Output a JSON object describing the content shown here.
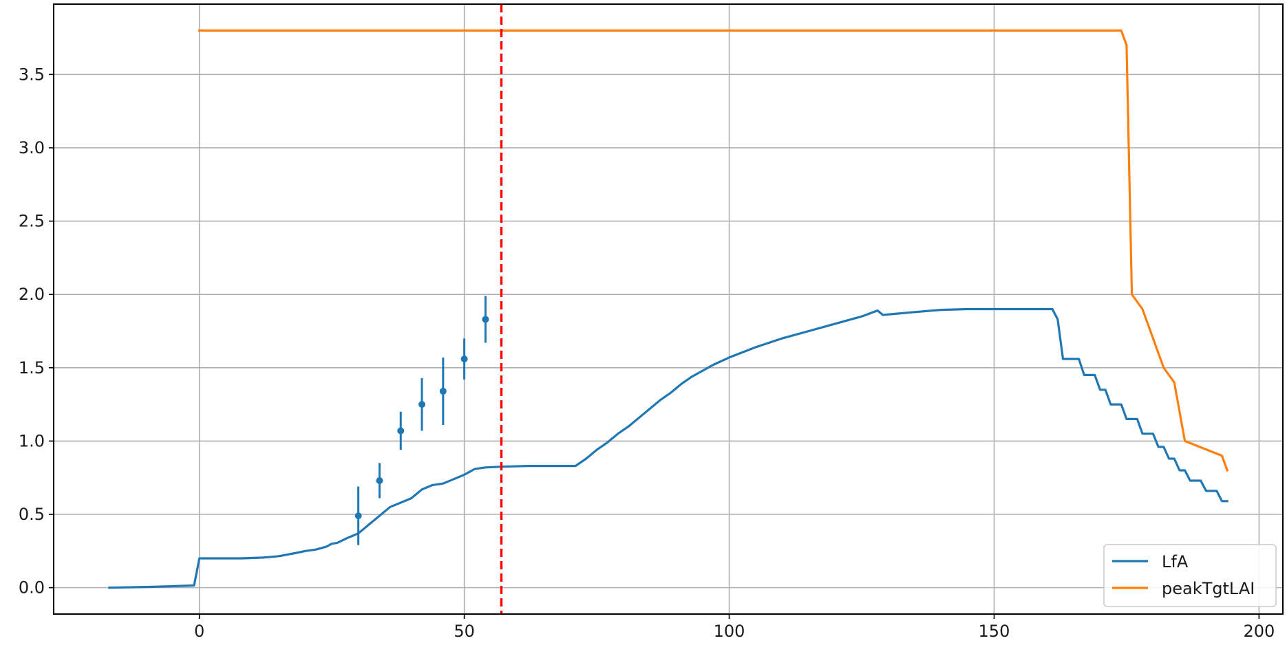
{
  "chart_data": {
    "type": "line",
    "title": "",
    "xlabel": "",
    "ylabel": "",
    "xlim": [
      -27.5,
      204.5
    ],
    "ylim": [
      -0.18,
      3.98
    ],
    "x_ticks": [
      0,
      50,
      100,
      150,
      200
    ],
    "x_tick_labels": [
      "0",
      "50",
      "100",
      "150",
      "200"
    ],
    "y_ticks": [
      0.0,
      0.5,
      1.0,
      1.5,
      2.0,
      2.5,
      3.0,
      3.5
    ],
    "y_tick_labels": [
      "0.0",
      "0.5",
      "1.0",
      "1.5",
      "2.0",
      "2.5",
      "3.0",
      "3.5"
    ],
    "grid": true,
    "legend_position": "lower-right",
    "series": [
      {
        "name": "LfA",
        "color": "#1f77b4",
        "points": [
          [
            -17,
            0.0
          ],
          [
            -10,
            0.005
          ],
          [
            -5,
            0.01
          ],
          [
            -1,
            0.015
          ],
          [
            0,
            0.2
          ],
          [
            4,
            0.2
          ],
          [
            8,
            0.2
          ],
          [
            12,
            0.205
          ],
          [
            15,
            0.215
          ],
          [
            18,
            0.235
          ],
          [
            20,
            0.25
          ],
          [
            22,
            0.26
          ],
          [
            24,
            0.28
          ],
          [
            25,
            0.3
          ],
          [
            26,
            0.305
          ],
          [
            28,
            0.34
          ],
          [
            30,
            0.37
          ],
          [
            32,
            0.43
          ],
          [
            34,
            0.49
          ],
          [
            36,
            0.55
          ],
          [
            38,
            0.58
          ],
          [
            40,
            0.61
          ],
          [
            42,
            0.67
          ],
          [
            44,
            0.7
          ],
          [
            46,
            0.71
          ],
          [
            48,
            0.74
          ],
          [
            50,
            0.77
          ],
          [
            51,
            0.79
          ],
          [
            52,
            0.81
          ],
          [
            54,
            0.82
          ],
          [
            57,
            0.825
          ],
          [
            62,
            0.83
          ],
          [
            66,
            0.83
          ],
          [
            71,
            0.83
          ],
          [
            73,
            0.88
          ],
          [
            75,
            0.94
          ],
          [
            77,
            0.99
          ],
          [
            79,
            1.05
          ],
          [
            81,
            1.1
          ],
          [
            83,
            1.16
          ],
          [
            85,
            1.22
          ],
          [
            87,
            1.28
          ],
          [
            89,
            1.33
          ],
          [
            91,
            1.39
          ],
          [
            93,
            1.44
          ],
          [
            95,
            1.48
          ],
          [
            97,
            1.52
          ],
          [
            100,
            1.57
          ],
          [
            105,
            1.64
          ],
          [
            110,
            1.7
          ],
          [
            115,
            1.75
          ],
          [
            120,
            1.8
          ],
          [
            125,
            1.85
          ],
          [
            128,
            1.89
          ],
          [
            129,
            1.86
          ],
          [
            135,
            1.88
          ],
          [
            140,
            1.895
          ],
          [
            145,
            1.9
          ],
          [
            150,
            1.9
          ],
          [
            155,
            1.9
          ],
          [
            161,
            1.9
          ],
          [
            162,
            1.83
          ],
          [
            163,
            1.56
          ],
          [
            166,
            1.56
          ],
          [
            167,
            1.45
          ],
          [
            169,
            1.45
          ],
          [
            170,
            1.35
          ],
          [
            171,
            1.35
          ],
          [
            172,
            1.25
          ],
          [
            174,
            1.25
          ],
          [
            175,
            1.15
          ],
          [
            177,
            1.15
          ],
          [
            178,
            1.05
          ],
          [
            180,
            1.05
          ],
          [
            181,
            0.96
          ],
          [
            182,
            0.96
          ],
          [
            183,
            0.88
          ],
          [
            184,
            0.88
          ],
          [
            185,
            0.8
          ],
          [
            186,
            0.8
          ],
          [
            187,
            0.73
          ],
          [
            189,
            0.73
          ],
          [
            190,
            0.66
          ],
          [
            192,
            0.66
          ],
          [
            193,
            0.59
          ],
          [
            194,
            0.59
          ]
        ]
      },
      {
        "name": "peakTgtLAI",
        "color": "#ff7f0e",
        "points": [
          [
            0,
            3.8
          ],
          [
            50,
            3.8
          ],
          [
            100,
            3.8
          ],
          [
            150,
            3.8
          ],
          [
            174,
            3.8
          ],
          [
            175,
            3.7
          ],
          [
            176,
            2.0
          ],
          [
            178,
            1.9
          ],
          [
            182,
            1.5
          ],
          [
            184,
            1.4
          ],
          [
            186,
            1.0
          ],
          [
            193,
            0.9
          ],
          [
            194,
            0.8
          ]
        ]
      }
    ],
    "observations": {
      "color": "#1f77b4",
      "points": [
        {
          "x": 30,
          "y": 0.49,
          "err": 0.2
        },
        {
          "x": 34,
          "y": 0.73,
          "err": 0.12
        },
        {
          "x": 38,
          "y": 1.07,
          "err": 0.13
        },
        {
          "x": 42,
          "y": 1.25,
          "err": 0.18
        },
        {
          "x": 46,
          "y": 1.34,
          "err": 0.23
        },
        {
          "x": 50,
          "y": 1.56,
          "err": 0.14
        },
        {
          "x": 54,
          "y": 1.83,
          "err": 0.16
        }
      ]
    },
    "vertical_marker": {
      "x": 57,
      "color": "#ff0000",
      "style": "dashed"
    }
  }
}
